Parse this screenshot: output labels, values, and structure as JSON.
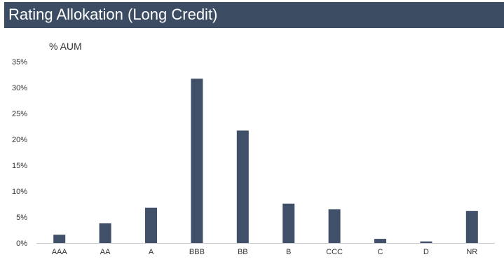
{
  "header": {
    "title": "Rating Allokation (Long Credit)"
  },
  "colors": {
    "title_bar": "#3b4c63",
    "bar": "#3f5068",
    "axis": "#c8ccd2",
    "text": "#333333"
  },
  "chart_data": {
    "type": "bar",
    "title": "",
    "ylabel": "% AUM",
    "xlabel": "",
    "categories": [
      "AAA",
      "AA",
      "A",
      "BBB",
      "BB",
      "B",
      "CCC",
      "C",
      "D",
      "NR"
    ],
    "values": [
      1.6,
      3.8,
      6.8,
      31.7,
      21.7,
      7.6,
      6.5,
      0.8,
      0.3,
      6.2
    ],
    "ylim": [
      0,
      35
    ],
    "yticks": [
      "0%",
      "5%",
      "10%",
      "15%",
      "20%",
      "25%",
      "30%",
      "35%"
    ],
    "ytick_values": [
      0,
      5,
      10,
      15,
      20,
      25,
      30,
      35
    ],
    "grid": false,
    "legend": "none"
  }
}
